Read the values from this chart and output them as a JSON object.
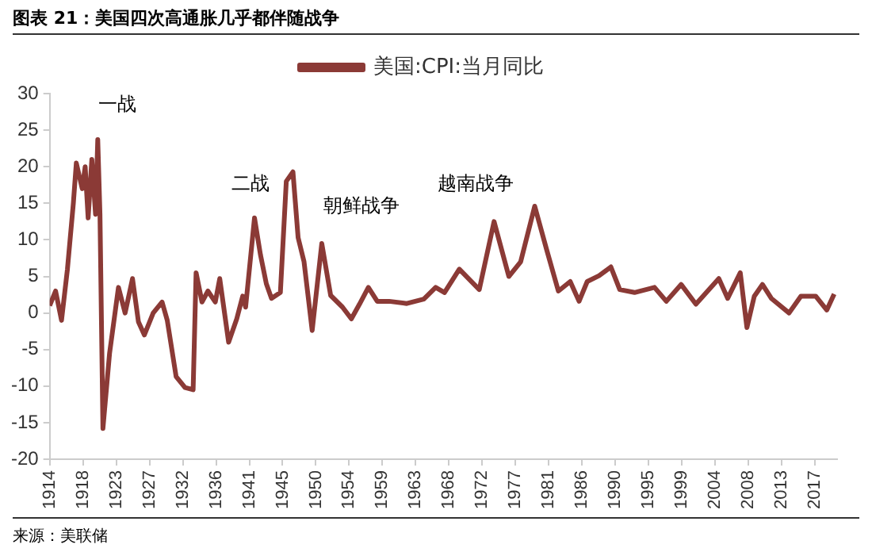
{
  "chart_data": {
    "type": "line",
    "title": "图表 21：美国四次高通胀几乎都伴随战争",
    "x": [
      1914.0,
      1914.8,
      1915.6,
      1916.4,
      1917.2,
      1917.6,
      1918.4,
      1918.8,
      1919.2,
      1919.7,
      1920.2,
      1920.5,
      1920.8,
      1921.2,
      1922.1,
      1923.3,
      1924.2,
      1925.2,
      1926.0,
      1926.8,
      1928.0,
      1929.2,
      1929.9,
      1931.1,
      1932.3,
      1933.4,
      1933.8,
      1934.6,
      1935.4,
      1936.4,
      1937.0,
      1938.2,
      1939.3,
      1940.1,
      1940.5,
      1941.7,
      1942.5,
      1943.3,
      1944.0,
      1945.2,
      1946.0,
      1946.9,
      1947.6,
      1948.4,
      1949.5,
      1950.8,
      1952.0,
      1953.6,
      1954.8,
      1955.9,
      1957.1,
      1958.3,
      1959.9,
      1962.3,
      1964.6,
      1966.2,
      1967.4,
      1969.4,
      1972.1,
      1974.1,
      1976.1,
      1977.7,
      1979.6,
      1981.2,
      1982.8,
      1984.4,
      1985.6,
      1986.7,
      1988.3,
      1989.9,
      1991.1,
      1993.1,
      1995.8,
      1997.4,
      1999.4,
      2001.4,
      2004.5,
      2005.7,
      2007.4,
      2008.3,
      2009.3,
      2010.4,
      2011.6,
      2014.0,
      2015.6,
      2017.6,
      2019.1,
      2020.1
    ],
    "series": [
      {
        "name": "美国:CPI:当月同比",
        "color": "#8b3a36",
        "values": [
          1,
          3,
          -1,
          6,
          15,
          20.5,
          17,
          20,
          13,
          21,
          13.5,
          23.7,
          13.5,
          -15.8,
          -5.5,
          3.5,
          0,
          4.7,
          -1.2,
          -3,
          0,
          1.5,
          -1,
          -8.7,
          -10.2,
          -10.5,
          5.5,
          1.5,
          3,
          1.5,
          4.7,
          -4,
          -0.8,
          2.3,
          0.8,
          13,
          8,
          4,
          2,
          2.8,
          18,
          19.3,
          10.3,
          7,
          -2.4,
          9.5,
          2.4,
          0.8,
          -0.8,
          1.2,
          3.5,
          1.6,
          1.6,
          1.3,
          1.9,
          3.5,
          2.8,
          6,
          3.2,
          12.5,
          5,
          7,
          14.6,
          8.7,
          3,
          4.3,
          1.6,
          4.3,
          5.1,
          6.3,
          3.2,
          2.8,
          3.5,
          1.6,
          3.9,
          1.2,
          4.7,
          2,
          5.5,
          -2,
          2.3,
          3.9,
          2,
          0,
          2.3,
          2.3,
          0.4,
          2.6
        ]
      }
    ],
    "xlim": [
      1914,
      2020.5
    ],
    "xticks": [
      1914,
      {
        "value": 1918.5,
        "label": "1918"
      },
      1923,
      {
        "value": 1927.5,
        "label": "1927"
      },
      1932,
      {
        "value": 1936.5,
        "label": "1936"
      },
      1941,
      {
        "value": 1945.5,
        "label": "1945"
      },
      1950,
      {
        "value": 1954.5,
        "label": "1954"
      },
      1959,
      {
        "value": 1963.5,
        "label": "1963"
      },
      1968,
      {
        "value": 1972.5,
        "label": "1972"
      },
      1977,
      {
        "value": 1981.5,
        "label": "1981"
      },
      1986,
      {
        "value": 1990.5,
        "label": "1990"
      },
      1995,
      {
        "value": 1999.5,
        "label": "1999"
      },
      2004,
      {
        "value": 2008.5,
        "label": "2008"
      },
      2013,
      {
        "value": 2017.5,
        "label": "2017"
      }
    ],
    "ylim": [
      -20,
      30
    ],
    "yticks": [
      -20,
      -15,
      -10,
      -5,
      0,
      5,
      10,
      15,
      20,
      25,
      30
    ],
    "grid": false,
    "legend": "top",
    "line_style": "solid",
    "marker": "none",
    "annotations": [
      "一战",
      "二战",
      "朝鲜战争",
      "越南战争",
      "来源：美联储"
    ]
  }
}
